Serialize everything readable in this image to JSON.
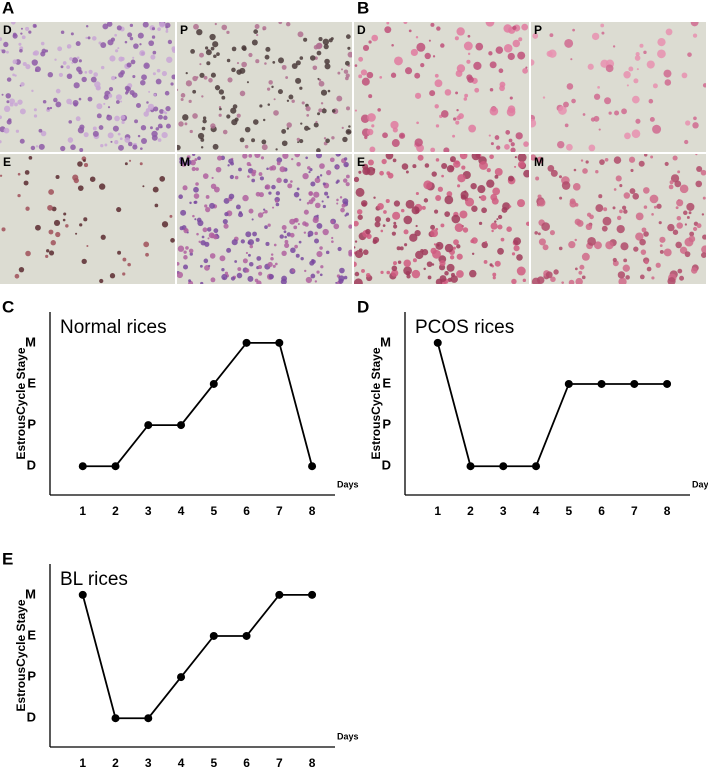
{
  "image_panels": [
    {
      "letter": "A",
      "tiles": [
        "D",
        "P",
        "E",
        "M"
      ]
    },
    {
      "letter": "B",
      "tiles": [
        "D",
        "P",
        "E",
        "M"
      ]
    }
  ],
  "chart_data": [
    {
      "type": "line",
      "panel": "C",
      "title": "Normal rices",
      "y_label": "EstrousCycle Staye",
      "x_label": "Days",
      "x": [
        1,
        2,
        3,
        4,
        5,
        6,
        7,
        8
      ],
      "xlim": [
        0,
        8.7
      ],
      "xticks": [
        1,
        2,
        3,
        4,
        5,
        6,
        7,
        8
      ],
      "ylim": [
        0.3,
        4.75
      ],
      "yticks": [
        {
          "value": 1,
          "label": "D"
        },
        {
          "value": 2,
          "label": "P"
        },
        {
          "value": 3,
          "label": "E"
        },
        {
          "value": 4,
          "label": "M"
        }
      ],
      "color": "#000000",
      "grid": false,
      "values": [
        1,
        1,
        2,
        2,
        3,
        4,
        4,
        1
      ]
    },
    {
      "type": "line",
      "panel": "D",
      "title": "PCOS rices",
      "y_label": "EstrousCycle Staye",
      "x_label": "Days",
      "x": [
        1,
        2,
        3,
        4,
        5,
        6,
        7,
        8
      ],
      "xlim": [
        0,
        8.7
      ],
      "xticks": [
        1,
        2,
        3,
        4,
        5,
        6,
        7,
        8
      ],
      "ylim": [
        0.3,
        4.75
      ],
      "yticks": [
        {
          "value": 1,
          "label": "D"
        },
        {
          "value": 2,
          "label": "P"
        },
        {
          "value": 3,
          "label": "E"
        },
        {
          "value": 4,
          "label": "M"
        }
      ],
      "color": "#000000",
      "grid": false,
      "values": [
        4,
        1,
        1,
        1,
        3,
        3,
        3,
        3
      ]
    },
    {
      "type": "line",
      "panel": "E",
      "title": "BL rices",
      "y_label": "EstrousCycle Staye",
      "x_label": "Days",
      "x": [
        1,
        2,
        3,
        4,
        5,
        6,
        7,
        8
      ],
      "xlim": [
        0,
        8.7
      ],
      "xticks": [
        1,
        2,
        3,
        4,
        5,
        6,
        7,
        8
      ],
      "ylim": [
        0.3,
        4.75
      ],
      "yticks": [
        {
          "value": 1,
          "label": "D"
        },
        {
          "value": 2,
          "label": "P"
        },
        {
          "value": 3,
          "label": "E"
        },
        {
          "value": 4,
          "label": "M"
        }
      ],
      "color": "#000000",
      "grid": false,
      "values": [
        4,
        1,
        1,
        2,
        3,
        3,
        4,
        4
      ]
    }
  ]
}
